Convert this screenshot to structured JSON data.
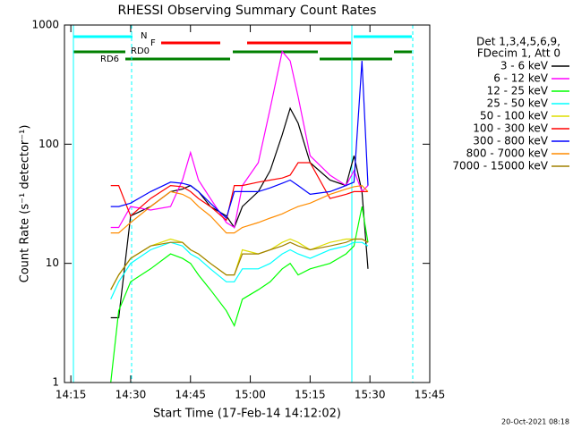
{
  "chart_data": {
    "type": "line",
    "title": "RHESSI Observing Summary Count Rates",
    "xlabel": "Start Time (17-Feb-14 14:12:02)",
    "ylabel": "Count Rate (s⁻¹ detector⁻¹)",
    "legend_title": [
      "Det 1,3,4,5,6,9,",
      "FDecim 1, Att 0"
    ],
    "footer": "20-Oct-2021 08:18",
    "annotations": [
      {
        "text": "N",
        "color": "#00ffff"
      },
      {
        "text": "F",
        "color": "#ff0000"
      },
      {
        "text": "RD0",
        "color": "#008000"
      },
      {
        "text": "RD6",
        "color": "#008000"
      }
    ],
    "log_y": true,
    "legend": "right",
    "xlim": [
      13.4,
      105
    ],
    "xticks": [
      {
        "value": 15,
        "label": "14:15"
      },
      {
        "value": 30,
        "label": "14:30"
      },
      {
        "value": 45,
        "label": "14:45"
      },
      {
        "value": 60,
        "label": "15:00"
      },
      {
        "value": 75,
        "label": "15:15"
      },
      {
        "value": 90,
        "label": "15:30"
      },
      {
        "value": 105,
        "label": "15:45"
      }
    ],
    "ylim": [
      1,
      1000
    ],
    "yticks": [
      1,
      10,
      100,
      1000
    ],
    "x": [
      25,
      27,
      30,
      35,
      40,
      43,
      45,
      47,
      50,
      54,
      56,
      58,
      62,
      65,
      68,
      70,
      72,
      75,
      80,
      84,
      86,
      88,
      89.5
    ],
    "series": [
      {
        "name": "3 - 6 keV",
        "color": "#000000",
        "values": [
          3.5,
          3.5,
          25,
          30,
          40,
          42,
          45,
          40,
          30,
          25,
          20,
          30,
          40,
          60,
          120,
          200,
          150,
          70,
          50,
          45,
          80,
          40,
          9
        ]
      },
      {
        "name": "6 - 12 keV",
        "color": "#ff00ff",
        "values": [
          20,
          20,
          30,
          28,
          30,
          50,
          85,
          50,
          35,
          22,
          20,
          45,
          70,
          200,
          600,
          500,
          250,
          80,
          55,
          45,
          60,
          40,
          45
        ]
      },
      {
        "name": "12 - 25 keV",
        "color": "#00ff00",
        "values": [
          1,
          4,
          7,
          9,
          12,
          11,
          10,
          8,
          6,
          4,
          3,
          5,
          6,
          7,
          9,
          10,
          8,
          9,
          10,
          12,
          14,
          30,
          15
        ]
      },
      {
        "name": "25 - 50 keV",
        "color": "#00ffff",
        "values": [
          5,
          7,
          10,
          13,
          15,
          14,
          12,
          11,
          9,
          7,
          7,
          9,
          9,
          10,
          12,
          13,
          12,
          11,
          13,
          14,
          15,
          15,
          14
        ]
      },
      {
        "name": "50 - 100 keV",
        "color": "#dddd00",
        "values": [
          6,
          8,
          11,
          14,
          16,
          15,
          13,
          12,
          10,
          8,
          8,
          13,
          12,
          13,
          15,
          16,
          15,
          13,
          15,
          16,
          16,
          16,
          15
        ]
      },
      {
        "name": "100 - 300 keV",
        "color": "#ff0000",
        "values": [
          45,
          45,
          25,
          35,
          45,
          44,
          40,
          35,
          30,
          23,
          45,
          45,
          48,
          50,
          52,
          55,
          70,
          70,
          35,
          38,
          40,
          40,
          40
        ]
      },
      {
        "name": "300 - 800 keV",
        "color": "#0000ff",
        "values": [
          30,
          30,
          32,
          40,
          48,
          47,
          45,
          40,
          32,
          24,
          40,
          40,
          40,
          43,
          47,
          50,
          45,
          38,
          40,
          45,
          48,
          500,
          45
        ]
      },
      {
        "name": "800 - 7000 keV",
        "color": "#ff8c00",
        "values": [
          18,
          18,
          22,
          30,
          40,
          38,
          35,
          30,
          25,
          18,
          18,
          20,
          22,
          24,
          26,
          28,
          30,
          32,
          38,
          42,
          44,
          45,
          40
        ]
      },
      {
        "name": "7000 - 15000 keV",
        "color": "#a08000",
        "values": [
          6,
          8,
          11,
          14,
          15,
          15,
          13,
          12,
          10,
          8,
          8,
          12,
          12,
          13,
          14,
          15,
          14,
          13,
          14,
          15,
          16,
          16,
          15
        ]
      }
    ]
  }
}
